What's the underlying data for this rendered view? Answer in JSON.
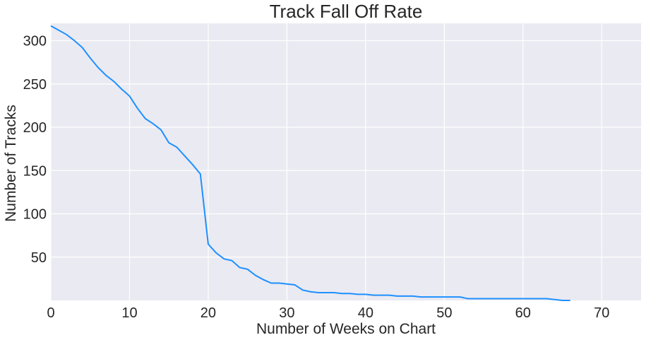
{
  "chart_data": {
    "type": "line",
    "title": "Track Fall Off Rate",
    "xlabel": "Number of Weeks on Chart",
    "ylabel": "Number of Tracks",
    "xlim": [
      0,
      75
    ],
    "ylim": [
      0,
      320
    ],
    "xticks": [
      0,
      10,
      20,
      30,
      40,
      50,
      60,
      70
    ],
    "yticks": [
      50,
      100,
      150,
      200,
      250,
      300
    ],
    "grid": true,
    "colors": {
      "background": "#eaeaf2",
      "line": "#1e90ff",
      "grid": "#ffffff"
    },
    "series": [
      {
        "x": [
          0,
          1,
          2,
          3,
          4,
          5,
          6,
          7,
          8,
          9,
          10,
          11,
          12,
          13,
          14,
          15,
          16,
          17,
          18,
          19,
          20,
          21,
          22,
          23,
          24,
          25,
          26,
          27,
          28,
          29,
          30,
          31,
          32,
          33,
          34,
          35,
          36,
          37,
          38,
          39,
          40,
          41,
          42,
          43,
          44,
          45,
          46,
          47,
          48,
          49,
          50,
          51,
          52,
          53,
          54,
          55,
          56,
          57,
          58,
          59,
          60,
          61,
          62,
          63,
          64,
          65,
          66
        ],
        "y": [
          317,
          312,
          307,
          300,
          292,
          280,
          269,
          260,
          253,
          244,
          236,
          222,
          210,
          204,
          197,
          182,
          177,
          167,
          157,
          146,
          65,
          55,
          48,
          46,
          38,
          36,
          29,
          24,
          20,
          20,
          19,
          18,
          12,
          10,
          9,
          9,
          9,
          8,
          8,
          7,
          7,
          6,
          6,
          6,
          5,
          5,
          5,
          4,
          4,
          4,
          4,
          4,
          4,
          2,
          2,
          2,
          2,
          2,
          2,
          2,
          2,
          2,
          2,
          2,
          1,
          0,
          0
        ]
      }
    ]
  }
}
